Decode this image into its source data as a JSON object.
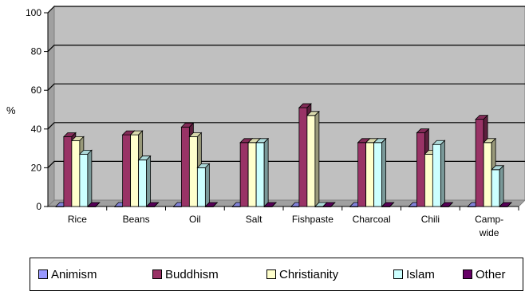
{
  "chart_data": {
    "type": "bar",
    "ylabel": "%",
    "ylim": [
      0,
      100
    ],
    "yticks": [
      0,
      20,
      40,
      60,
      80,
      100
    ],
    "grid": true,
    "legend_position": "bottom",
    "categories": [
      "Rice",
      "Beans",
      "Oil",
      "Salt",
      "Fishpaste",
      "Charcoal",
      "Chili",
      "Camp-wide"
    ],
    "series": [
      {
        "name": "Animism",
        "color": "#9999ff",
        "values": [
          0,
          0,
          0,
          0,
          0,
          0,
          0,
          0
        ]
      },
      {
        "name": "Buddhism",
        "color": "#993366",
        "values": [
          36,
          37,
          41,
          33,
          51,
          33,
          38,
          45
        ]
      },
      {
        "name": "Christianity",
        "color": "#ffffcc",
        "values": [
          34,
          37,
          36,
          33,
          47,
          33,
          27,
          33
        ]
      },
      {
        "name": "Islam",
        "color": "#ccffff",
        "values": [
          27,
          24,
          20,
          33,
          0,
          33,
          32,
          19
        ]
      },
      {
        "name": "Other",
        "color": "#660066",
        "values": [
          0,
          0,
          0,
          0,
          0,
          0,
          0,
          0
        ]
      }
    ],
    "plot_background": "#c0c0c0"
  }
}
